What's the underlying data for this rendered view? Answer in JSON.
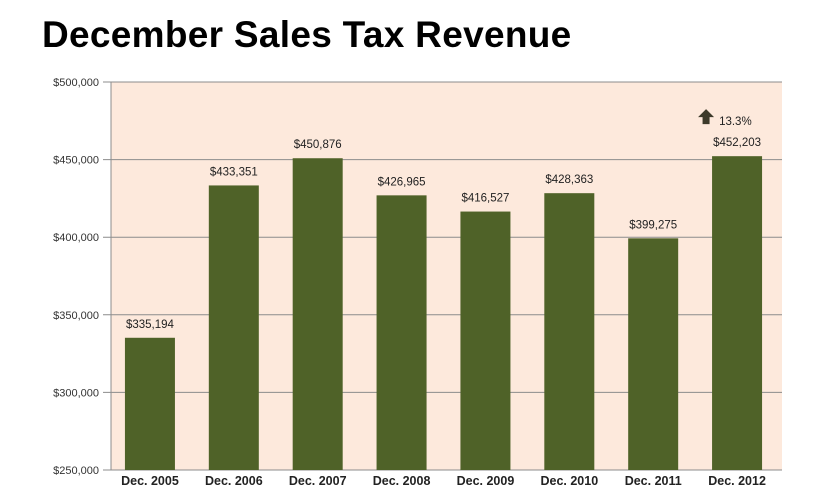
{
  "chart_data": {
    "type": "bar",
    "title": "December Sales Tax Revenue",
    "xlabel": "",
    "ylabel": "",
    "ylim": [
      250000,
      500000
    ],
    "yticks": [
      "$250,000",
      "$300,000",
      "$350,000",
      "$400,000",
      "$450,000",
      "$500,000"
    ],
    "grid": true,
    "categories": [
      "Dec. 2005",
      "Dec. 2006",
      "Dec. 2007",
      "Dec. 2008",
      "Dec. 2009",
      "Dec. 2010",
      "Dec. 2011",
      "Dec. 2012"
    ],
    "values": [
      335194,
      433351,
      450876,
      426965,
      416527,
      428363,
      399275,
      452203
    ],
    "labels": [
      "$335,194",
      "$433,351",
      "$450,876",
      "$426,965",
      "$416,527",
      "$428,363",
      "$399,275",
      "$452,203"
    ],
    "annotation": {
      "text": "13.3%",
      "icon": "up-arrow-icon"
    },
    "colors": {
      "bar": "#4f6228",
      "plot_bg": "#fde9dc",
      "grid": "#8c8c8c",
      "arrow": "#3d3a2a"
    }
  }
}
